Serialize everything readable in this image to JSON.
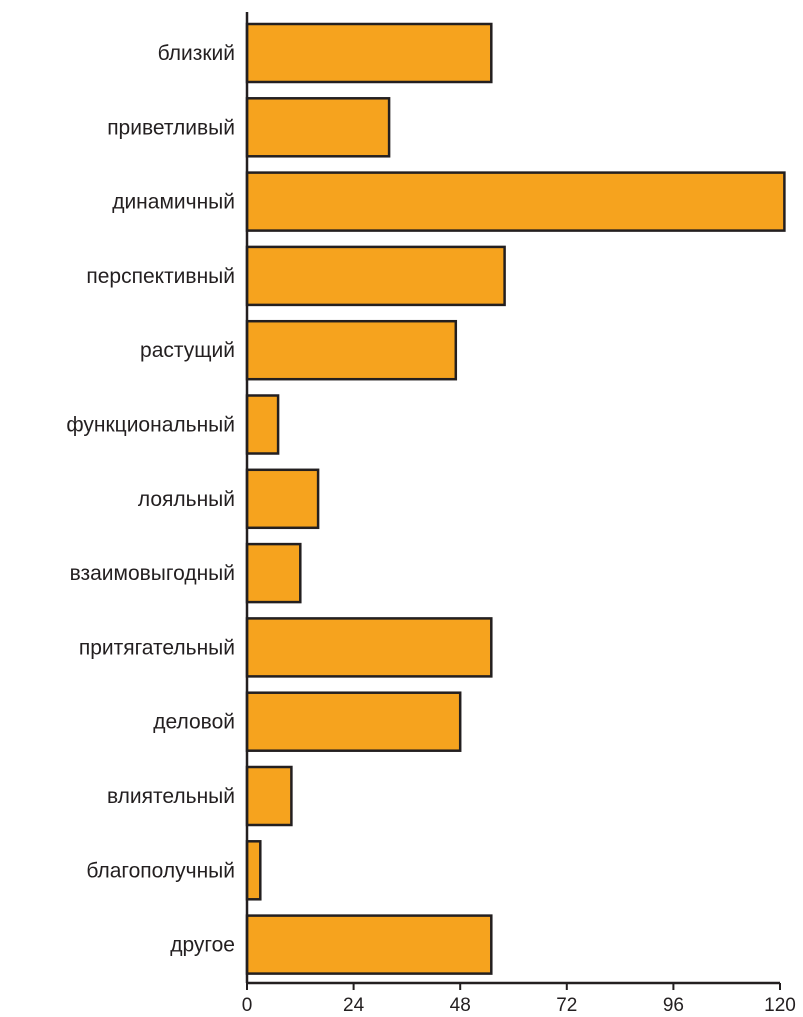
{
  "chart_data": {
    "type": "bar",
    "orientation": "horizontal",
    "categories": [
      "близкий",
      "приветливый",
      "динамичный",
      "перспективный",
      "растущий",
      "функциональный",
      "лояльный",
      "взаимовыгодный",
      "притягательный",
      "деловой",
      "влиятельный",
      "благополучный",
      "другое"
    ],
    "values": [
      55,
      32,
      121,
      58,
      47,
      7,
      16,
      12,
      55,
      48,
      10,
      3,
      55
    ],
    "xlim": [
      0,
      120
    ],
    "x_ticks": [
      "0",
      "24",
      "48",
      "72",
      "96",
      "120"
    ],
    "title": "",
    "xlabel": "",
    "ylabel": "",
    "grid": false,
    "legend": "none",
    "colors": {
      "bar_fill": "#f6a31e",
      "bar_stroke": "#231f20",
      "axis": "#231f20",
      "text": "#231f20"
    }
  }
}
